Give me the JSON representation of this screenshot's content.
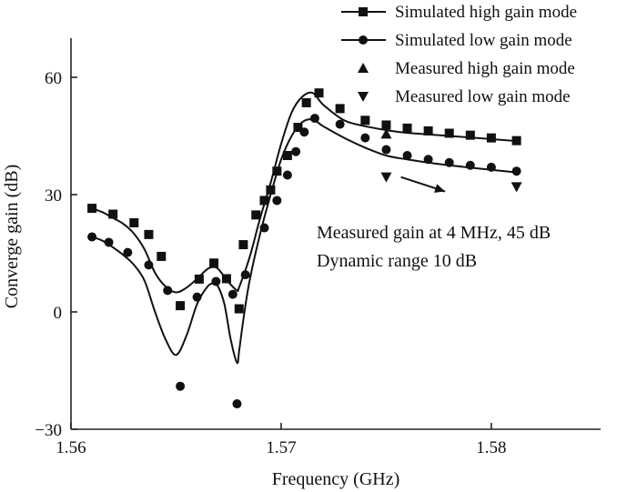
{
  "chart_data": {
    "type": "line",
    "title": "",
    "xlabel": "Frequency (GHz)",
    "ylabel": "Converge gain (dB)",
    "xlim": [
      1.56,
      1.5852
    ],
    "ylim": [
      -30,
      70
    ],
    "xticks": [
      1.56,
      1.57,
      1.58
    ],
    "xtick_labels": [
      "1.56",
      "1.57",
      "1.58"
    ],
    "yticks": [
      -30,
      0,
      30,
      60
    ],
    "ytick_labels": [
      "−30",
      "0",
      "30",
      "60"
    ],
    "grid": false,
    "legend_position": "top-right",
    "series": [
      {
        "name": "Simulated high gain mode",
        "style": "line-markers",
        "marker": "square",
        "curve": [
          [
            1.561,
            26.5
          ],
          [
            1.5615,
            25.5
          ],
          [
            1.562,
            24
          ],
          [
            1.5625,
            22.5
          ],
          [
            1.563,
            20
          ],
          [
            1.5635,
            16
          ],
          [
            1.564,
            10
          ],
          [
            1.5645,
            6.5
          ],
          [
            1.565,
            5
          ],
          [
            1.5655,
            6.2
          ],
          [
            1.566,
            8.5
          ],
          [
            1.5665,
            11
          ],
          [
            1.5668,
            11.5
          ],
          [
            1.567,
            11
          ],
          [
            1.5673,
            9
          ],
          [
            1.5676,
            7
          ],
          [
            1.5679,
            5.5
          ],
          [
            1.568,
            6.3
          ],
          [
            1.5685,
            14
          ],
          [
            1.569,
            24
          ],
          [
            1.5695,
            33
          ],
          [
            1.57,
            43
          ],
          [
            1.5705,
            51
          ],
          [
            1.571,
            55
          ],
          [
            1.5715,
            56
          ],
          [
            1.572,
            53
          ],
          [
            1.573,
            49
          ],
          [
            1.574,
            47.5
          ],
          [
            1.575,
            46.5
          ],
          [
            1.576,
            45.8
          ],
          [
            1.578,
            45
          ],
          [
            1.581,
            43.8
          ]
        ],
        "markers": [
          [
            1.561,
            26.5
          ],
          [
            1.562,
            25
          ],
          [
            1.563,
            22.8
          ],
          [
            1.5637,
            19.8
          ],
          [
            1.5643,
            14.2
          ],
          [
            1.5652,
            1.6
          ],
          [
            1.5661,
            8.4
          ],
          [
            1.5668,
            12.5
          ],
          [
            1.5674,
            8.5
          ],
          [
            1.568,
            0.8
          ],
          [
            1.5682,
            17.2
          ],
          [
            1.5688,
            24.8
          ],
          [
            1.5692,
            28.5
          ],
          [
            1.5695,
            31.2
          ],
          [
            1.5698,
            36
          ],
          [
            1.5703,
            40
          ],
          [
            1.5708,
            47.2
          ],
          [
            1.5712,
            53.5
          ],
          [
            1.5718,
            56
          ],
          [
            1.5728,
            52
          ],
          [
            1.574,
            49
          ],
          [
            1.575,
            47.8
          ],
          [
            1.576,
            47
          ],
          [
            1.577,
            46.3
          ],
          [
            1.578,
            45.7
          ],
          [
            1.579,
            45.2
          ],
          [
            1.58,
            44.5
          ],
          [
            1.5812,
            43.8
          ]
        ]
      },
      {
        "name": "Simulated low gain mode",
        "style": "line-markers",
        "marker": "circle",
        "curve": [
          [
            1.561,
            19.2
          ],
          [
            1.5615,
            18.2
          ],
          [
            1.562,
            16.5
          ],
          [
            1.5625,
            14.5
          ],
          [
            1.563,
            12
          ],
          [
            1.5635,
            8
          ],
          [
            1.564,
            0
          ],
          [
            1.5645,
            -7
          ],
          [
            1.565,
            -11
          ],
          [
            1.5655,
            -6
          ],
          [
            1.566,
            2
          ],
          [
            1.5665,
            6.5
          ],
          [
            1.5668,
            7.3
          ],
          [
            1.567,
            6.5
          ],
          [
            1.5673,
            2
          ],
          [
            1.5676,
            -7
          ],
          [
            1.5679,
            -13
          ],
          [
            1.568,
            -10
          ],
          [
            1.5682,
            -2
          ],
          [
            1.5685,
            8
          ],
          [
            1.569,
            20
          ],
          [
            1.5695,
            30
          ],
          [
            1.57,
            39
          ],
          [
            1.5705,
            45
          ],
          [
            1.571,
            48.5
          ],
          [
            1.5715,
            49.2
          ],
          [
            1.572,
            47.5
          ],
          [
            1.573,
            44.5
          ],
          [
            1.574,
            42
          ],
          [
            1.575,
            40
          ],
          [
            1.576,
            39
          ],
          [
            1.578,
            37.5
          ],
          [
            1.581,
            35.8
          ]
        ],
        "markers": [
          [
            1.561,
            19.2
          ],
          [
            1.5618,
            17.8
          ],
          [
            1.5627,
            15.2
          ],
          [
            1.5637,
            12
          ],
          [
            1.5646,
            5.5
          ],
          [
            1.566,
            3.8
          ],
          [
            1.5669,
            7.8
          ],
          [
            1.5677,
            4.5
          ],
          [
            1.5683,
            9.5
          ],
          [
            1.5692,
            21.5
          ],
          [
            1.5698,
            28.5
          ],
          [
            1.5703,
            35
          ],
          [
            1.5707,
            41
          ],
          [
            1.5711,
            46
          ],
          [
            1.5716,
            49.5
          ],
          [
            1.5728,
            48
          ],
          [
            1.574,
            44.5
          ],
          [
            1.575,
            41.5
          ],
          [
            1.576,
            40
          ],
          [
            1.577,
            39
          ],
          [
            1.578,
            38.2
          ],
          [
            1.579,
            37.5
          ],
          [
            1.58,
            37
          ],
          [
            1.5812,
            36
          ]
        ]
      },
      {
        "name": "Measured high gain mode",
        "style": "markers",
        "marker": "triangle-up",
        "markers": [
          [
            1.575,
            45.5
          ]
        ]
      },
      {
        "name": "Measured low gain mode",
        "style": "markers",
        "marker": "triangle-down",
        "markers": [
          [
            1.575,
            34.5
          ],
          [
            1.5812,
            32
          ]
        ]
      },
      {
        "name": "",
        "style": "markers",
        "marker": "circle",
        "markers": [
          [
            1.5652,
            -19
          ],
          [
            1.5679,
            -23.5
          ]
        ]
      }
    ],
    "annotations": [
      {
        "text": "Measured gain at 4 MHz, 45 dB",
        "x": 1.5731,
        "y": 25.2
      },
      {
        "text": "Dynamic range 10 dB",
        "x": 1.5731,
        "y": 20.2
      }
    ],
    "arrow": {
      "from": [
        1.5757,
        34.5
      ],
      "to": [
        1.5778,
        30.8
      ]
    }
  }
}
